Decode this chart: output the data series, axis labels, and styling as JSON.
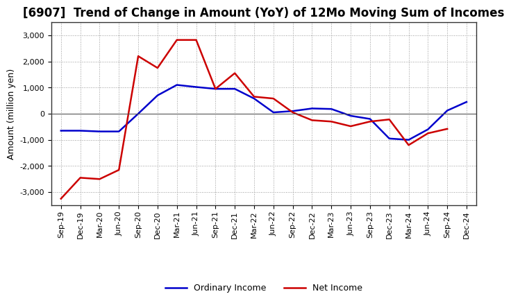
{
  "title": "[6907]  Trend of Change in Amount (YoY) of 12Mo Moving Sum of Incomes",
  "ylabel": "Amount (million yen)",
  "background_color": "#ffffff",
  "plot_background_color": "#ffffff",
  "grid_color": "#999999",
  "x_labels": [
    "Sep-19",
    "Dec-19",
    "Mar-20",
    "Jun-20",
    "Sep-20",
    "Dec-20",
    "Mar-21",
    "Jun-21",
    "Sep-21",
    "Dec-21",
    "Mar-22",
    "Jun-22",
    "Sep-22",
    "Dec-22",
    "Mar-23",
    "Jun-23",
    "Sep-23",
    "Dec-23",
    "Mar-24",
    "Jun-24",
    "Sep-24",
    "Dec-24"
  ],
  "ordinary_income": [
    -650,
    -650,
    -680,
    -680,
    0,
    700,
    1100,
    1020,
    950,
    950,
    580,
    50,
    100,
    200,
    180,
    -80,
    -200,
    -950,
    -1000,
    -600,
    120,
    450
  ],
  "net_income": [
    -3250,
    -2450,
    -2500,
    -2150,
    2200,
    1750,
    2820,
    2820,
    950,
    1550,
    650,
    580,
    50,
    -250,
    -300,
    -480,
    -300,
    -220,
    -1200,
    -750,
    -580,
    null
  ],
  "ordinary_income_color": "#0000cc",
  "net_income_color": "#cc0000",
  "ylim": [
    -3500,
    3500
  ],
  "yticks": [
    -3000,
    -2000,
    -1000,
    0,
    1000,
    2000,
    3000
  ],
  "legend_labels": [
    "Ordinary Income",
    "Net Income"
  ],
  "line_width": 1.8,
  "title_fontsize": 12,
  "axis_label_fontsize": 9,
  "tick_fontsize": 8
}
